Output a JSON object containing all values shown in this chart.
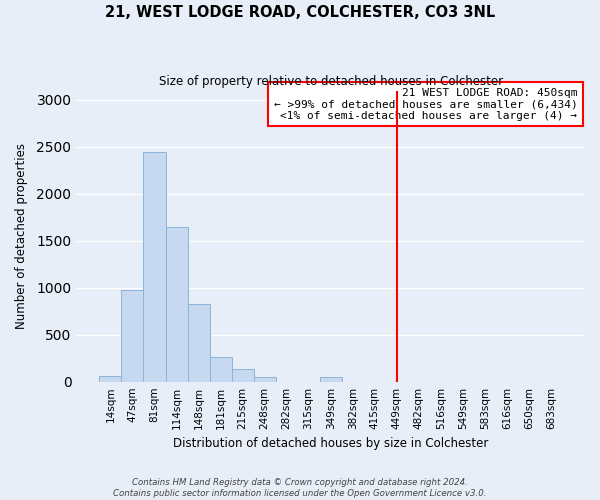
{
  "title": "21, WEST LODGE ROAD, COLCHESTER, CO3 3NL",
  "subtitle": "Size of property relative to detached houses in Colchester",
  "xlabel": "Distribution of detached houses by size in Colchester",
  "ylabel": "Number of detached properties",
  "bar_color": "#c6d9f0",
  "bar_edge_color": "#8ab4d8",
  "background_color": "#e8eef8",
  "grid_color": "#ffffff",
  "categories": [
    "14sqm",
    "47sqm",
    "81sqm",
    "114sqm",
    "148sqm",
    "181sqm",
    "215sqm",
    "248sqm",
    "282sqm",
    "315sqm",
    "349sqm",
    "382sqm",
    "415sqm",
    "449sqm",
    "482sqm",
    "516sqm",
    "549sqm",
    "583sqm",
    "616sqm",
    "650sqm",
    "683sqm"
  ],
  "values": [
    60,
    980,
    2450,
    1650,
    830,
    260,
    130,
    50,
    0,
    0,
    50,
    0,
    0,
    0,
    0,
    0,
    0,
    0,
    0,
    0,
    0
  ],
  "marker_idx": 13,
  "annotation_title": "21 WEST LODGE ROAD: 450sqm",
  "annotation_line1": "← >99% of detached houses are smaller (6,434)",
  "annotation_line2": "<1% of semi-detached houses are larger (4) →",
  "ylim": [
    0,
    3100
  ],
  "yticks": [
    0,
    500,
    1000,
    1500,
    2000,
    2500,
    3000
  ],
  "footer_line1": "Contains HM Land Registry data © Crown copyright and database right 2024.",
  "footer_line2": "Contains public sector information licensed under the Open Government Licence v3.0."
}
